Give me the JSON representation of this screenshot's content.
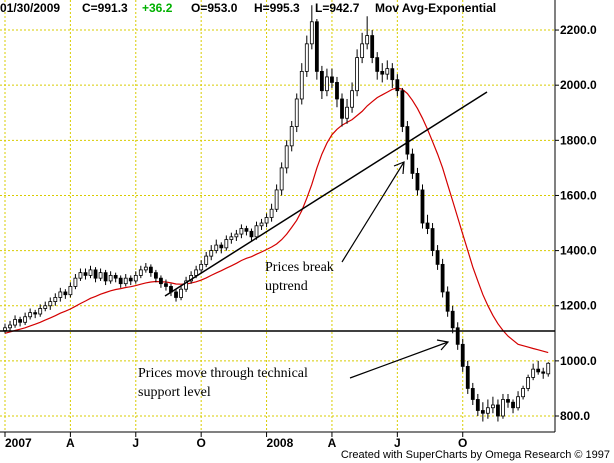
{
  "chart_data": {
    "type": "candlestick",
    "header": [
      "01/30/2009",
      "C=991.3",
      "+36.2",
      "O=953.0",
      "H=995.3",
      "L=942.7",
      "Mov Avg-Exponential"
    ],
    "footer": "Created with SuperCharts by Omega Research © 1997",
    "annotations": [
      "Prices break",
      "uptrend",
      "Prices move through technical",
      "support level"
    ],
    "categories": [
      "2007",
      null,
      null,
      null,
      null,
      null,
      null,
      null,
      null,
      null,
      null,
      null,
      null,
      "A",
      null,
      null,
      null,
      null,
      null,
      null,
      null,
      null,
      null,
      null,
      null,
      null,
      "J",
      null,
      null,
      null,
      null,
      null,
      null,
      null,
      null,
      null,
      null,
      null,
      null,
      "O",
      null,
      null,
      null,
      null,
      null,
      null,
      null,
      null,
      null,
      null,
      null,
      null,
      "2008",
      null,
      null,
      null,
      null,
      null,
      null,
      null,
      null,
      null,
      null,
      null,
      null,
      "A",
      null,
      null,
      null,
      null,
      null,
      null,
      null,
      null,
      null,
      null,
      null,
      null,
      "J",
      null,
      null,
      null,
      null,
      null,
      null,
      null,
      null,
      null,
      null,
      null,
      null,
      "O",
      null,
      null,
      null,
      null,
      null,
      null,
      null,
      null,
      null,
      null,
      null,
      null,
      null,
      null,
      null,
      null,
      null
    ],
    "ohlc": [
      [
        1110,
        1135,
        1100,
        1120
      ],
      [
        1120,
        1145,
        1110,
        1130
      ],
      [
        1130,
        1165,
        1120,
        1150
      ],
      [
        1150,
        1160,
        1125,
        1140
      ],
      [
        1140,
        1175,
        1130,
        1160
      ],
      [
        1160,
        1190,
        1150,
        1175
      ],
      [
        1175,
        1185,
        1155,
        1170
      ],
      [
        1170,
        1205,
        1160,
        1190
      ],
      [
        1190,
        1215,
        1180,
        1200
      ],
      [
        1200,
        1230,
        1185,
        1215
      ],
      [
        1215,
        1245,
        1200,
        1230
      ],
      [
        1230,
        1265,
        1215,
        1250
      ],
      [
        1250,
        1260,
        1225,
        1240
      ],
      [
        1240,
        1285,
        1230,
        1270
      ],
      [
        1270,
        1315,
        1260,
        1300
      ],
      [
        1300,
        1335,
        1290,
        1320
      ],
      [
        1320,
        1335,
        1295,
        1310
      ],
      [
        1310,
        1345,
        1300,
        1330
      ],
      [
        1330,
        1340,
        1285,
        1300
      ],
      [
        1300,
        1335,
        1290,
        1320
      ],
      [
        1320,
        1330,
        1275,
        1290
      ],
      [
        1290,
        1325,
        1280,
        1310
      ],
      [
        1310,
        1320,
        1285,
        1300
      ],
      [
        1300,
        1310,
        1265,
        1280
      ],
      [
        1280,
        1315,
        1270,
        1300
      ],
      [
        1300,
        1310,
        1275,
        1290
      ],
      [
        1290,
        1325,
        1280,
        1310
      ],
      [
        1310,
        1345,
        1300,
        1330
      ],
      [
        1330,
        1355,
        1320,
        1340
      ],
      [
        1340,
        1350,
        1305,
        1320
      ],
      [
        1320,
        1330,
        1285,
        1300
      ],
      [
        1300,
        1310,
        1265,
        1280
      ],
      [
        1280,
        1295,
        1255,
        1270
      ],
      [
        1270,
        1280,
        1235,
        1250
      ],
      [
        1250,
        1260,
        1215,
        1230
      ],
      [
        1230,
        1275,
        1220,
        1260
      ],
      [
        1260,
        1305,
        1250,
        1290
      ],
      [
        1290,
        1325,
        1280,
        1310
      ],
      [
        1310,
        1345,
        1300,
        1330
      ],
      [
        1330,
        1365,
        1320,
        1350
      ],
      [
        1350,
        1395,
        1340,
        1380
      ],
      [
        1380,
        1420,
        1365,
        1400
      ],
      [
        1400,
        1440,
        1390,
        1420
      ],
      [
        1420,
        1430,
        1390,
        1410
      ],
      [
        1410,
        1455,
        1400,
        1440
      ],
      [
        1440,
        1465,
        1425,
        1450
      ],
      [
        1450,
        1475,
        1435,
        1460
      ],
      [
        1460,
        1495,
        1445,
        1480
      ],
      [
        1480,
        1490,
        1455,
        1470
      ],
      [
        1470,
        1480,
        1435,
        1450
      ],
      [
        1450,
        1505,
        1440,
        1490
      ],
      [
        1490,
        1515,
        1475,
        1500
      ],
      [
        1500,
        1535,
        1485,
        1520
      ],
      [
        1520,
        1570,
        1505,
        1550
      ],
      [
        1550,
        1640,
        1540,
        1620
      ],
      [
        1620,
        1720,
        1600,
        1700
      ],
      [
        1700,
        1800,
        1680,
        1780
      ],
      [
        1780,
        1870,
        1760,
        1850
      ],
      [
        1850,
        1970,
        1830,
        1950
      ],
      [
        1950,
        2080,
        1930,
        2050
      ],
      [
        2050,
        2180,
        2030,
        2150
      ],
      [
        2150,
        2290,
        2130,
        2230
      ],
      [
        2230,
        2240,
        2020,
        2050
      ],
      [
        2050,
        2070,
        1950,
        1980
      ],
      [
        1980,
        2060,
        1960,
        2030
      ],
      [
        2030,
        2060,
        1990,
        2010
      ],
      [
        2010,
        2030,
        1920,
        1950
      ],
      [
        1950,
        1970,
        1850,
        1880
      ],
      [
        1880,
        1950,
        1860,
        1920
      ],
      [
        1920,
        2010,
        1900,
        1980
      ],
      [
        1980,
        2130,
        1960,
        2100
      ],
      [
        2100,
        2190,
        2080,
        2150
      ],
      [
        2150,
        2250,
        2130,
        2180
      ],
      [
        2180,
        2200,
        2080,
        2100
      ],
      [
        2100,
        2120,
        2020,
        2050
      ],
      [
        2050,
        2080,
        2010,
        2040
      ],
      [
        2040,
        2090,
        2020,
        2060
      ],
      [
        2060,
        2080,
        1990,
        2020
      ],
      [
        2020,
        2040,
        1960,
        1980
      ],
      [
        1980,
        1990,
        1830,
        1850
      ],
      [
        1850,
        1870,
        1730,
        1750
      ],
      [
        1750,
        1770,
        1660,
        1680
      ],
      [
        1680,
        1700,
        1600,
        1620
      ],
      [
        1620,
        1640,
        1480,
        1500
      ],
      [
        1500,
        1530,
        1460,
        1480
      ],
      [
        1480,
        1500,
        1380,
        1400
      ],
      [
        1400,
        1420,
        1330,
        1350
      ],
      [
        1350,
        1370,
        1230,
        1250
      ],
      [
        1250,
        1270,
        1160,
        1180
      ],
      [
        1180,
        1200,
        1100,
        1120
      ],
      [
        1120,
        1140,
        1040,
        1060
      ],
      [
        1060,
        1080,
        960,
        980
      ],
      [
        980,
        1000,
        880,
        900
      ],
      [
        900,
        920,
        840,
        860
      ],
      [
        860,
        880,
        800,
        820
      ],
      [
        820,
        850,
        780,
        810
      ],
      [
        810,
        860,
        790,
        830
      ],
      [
        830,
        870,
        810,
        840
      ],
      [
        840,
        860,
        780,
        800
      ],
      [
        800,
        880,
        790,
        860
      ],
      [
        860,
        880,
        830,
        850
      ],
      [
        850,
        860,
        810,
        830
      ],
      [
        830,
        890,
        820,
        870
      ],
      [
        870,
        910,
        860,
        900
      ],
      [
        900,
        950,
        890,
        940
      ],
      [
        940,
        990,
        930,
        970
      ],
      [
        970,
        1000,
        950,
        960
      ],
      [
        960,
        975,
        935,
        955.1
      ],
      [
        953,
        995.3,
        942.7,
        991.3
      ]
    ],
    "ema": [
      1100,
      1105,
      1110,
      1115,
      1120,
      1127,
      1133,
      1140,
      1148,
      1156,
      1164,
      1173,
      1180,
      1188,
      1198,
      1208,
      1217,
      1227,
      1234,
      1242,
      1248,
      1254,
      1259,
      1262,
      1266,
      1269,
      1273,
      1278,
      1283,
      1286,
      1288,
      1287,
      1286,
      1283,
      1279,
      1278,
      1279,
      1282,
      1287,
      1293,
      1301,
      1310,
      1319,
      1327,
      1336,
      1345,
      1354,
      1364,
      1372,
      1378,
      1387,
      1395,
      1404,
      1413,
      1424,
      1440,
      1460,
      1484,
      1510,
      1545,
      1590,
      1640,
      1700,
      1750,
      1790,
      1820,
      1840,
      1855,
      1865,
      1875,
      1890,
      1905,
      1925,
      1940,
      1955,
      1965,
      1975,
      1985,
      1990,
      1985,
      1970,
      1945,
      1915,
      1880,
      1840,
      1795,
      1750,
      1700,
      1640,
      1580,
      1520,
      1460,
      1400,
      1340,
      1290,
      1240,
      1200,
      1165,
      1135,
      1110,
      1090,
      1075,
      1060,
      1055,
      1050,
      1045,
      1040,
      1035,
      1030
    ],
    "ema_color": "#d40000",
    "up_color": "#ffffff",
    "down_color": "#000000",
    "grid_color": "#d8cc00",
    "ylim": [
      742,
      2309
    ],
    "yticks": [
      {
        "value": 800,
        "label": "800.0"
      },
      {
        "value": 1000,
        "label": "1000.0"
      },
      {
        "value": 1200,
        "label": "1200.0"
      },
      {
        "value": 1400,
        "label": "1400.0"
      },
      {
        "value": 1600,
        "label": "1600.0"
      },
      {
        "value": 1800,
        "label": "1800.0"
      },
      {
        "value": 2000,
        "label": "2000.0"
      },
      {
        "value": 2200,
        "label": "2200.0"
      }
    ],
    "grid": true
  }
}
